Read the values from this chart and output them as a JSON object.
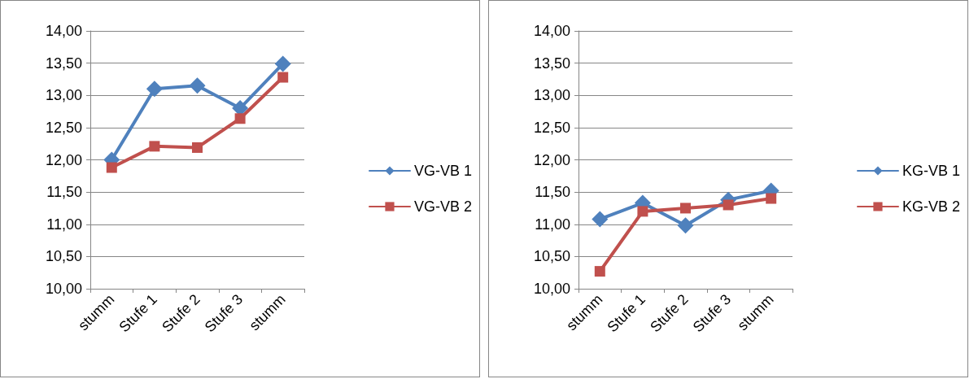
{
  "chart_data": [
    {
      "type": "line",
      "categories": [
        "stumm",
        "Stufe 1",
        "Stufe 2",
        "Stufe 3",
        "stumm"
      ],
      "series": [
        {
          "name": "VG-VB 1",
          "color": "#4f81bd",
          "marker": "diamond",
          "values": [
            12.0,
            13.1,
            13.15,
            12.8,
            13.49
          ]
        },
        {
          "name": "VG-VB 2",
          "color": "#c0504d",
          "marker": "square",
          "values": [
            11.88,
            12.21,
            12.19,
            12.64,
            13.28
          ]
        }
      ],
      "ylim": [
        10,
        14
      ],
      "yticks": [
        {
          "value": 10,
          "label": "10,00"
        },
        {
          "value": 10.5,
          "label": "10,50"
        },
        {
          "value": 11,
          "label": "11,00"
        },
        {
          "value": 11.5,
          "label": "11,50"
        },
        {
          "value": 12,
          "label": "12,00"
        },
        {
          "value": 12.5,
          "label": "12,50"
        },
        {
          "value": 13,
          "label": "13,00"
        },
        {
          "value": 13.5,
          "label": "13,50"
        },
        {
          "value": 14,
          "label": "14,00"
        }
      ],
      "grid": "y",
      "legend": "right"
    },
    {
      "type": "line",
      "categories": [
        "stumm",
        "Stufe 1",
        "Stufe 2",
        "Stufe 3",
        "stumm"
      ],
      "series": [
        {
          "name": "KG-VB 1",
          "color": "#4f81bd",
          "marker": "diamond",
          "values": [
            11.08,
            11.33,
            10.98,
            11.38,
            11.52
          ]
        },
        {
          "name": "KG-VB 2",
          "color": "#c0504d",
          "marker": "square",
          "values": [
            10.27,
            11.2,
            11.25,
            11.3,
            11.4
          ]
        }
      ],
      "ylim": [
        10,
        14
      ],
      "yticks": [
        {
          "value": 10,
          "label": "10,00"
        },
        {
          "value": 10.5,
          "label": "10,50"
        },
        {
          "value": 11,
          "label": "11,00"
        },
        {
          "value": 11.5,
          "label": "11,50"
        },
        {
          "value": 12,
          "label": "12,00"
        },
        {
          "value": 12.5,
          "label": "12,50"
        },
        {
          "value": 13,
          "label": "13,00"
        },
        {
          "value": 13.5,
          "label": "13,50"
        },
        {
          "value": 14,
          "label": "14,00"
        }
      ],
      "grid": "y",
      "legend": "right"
    }
  ]
}
